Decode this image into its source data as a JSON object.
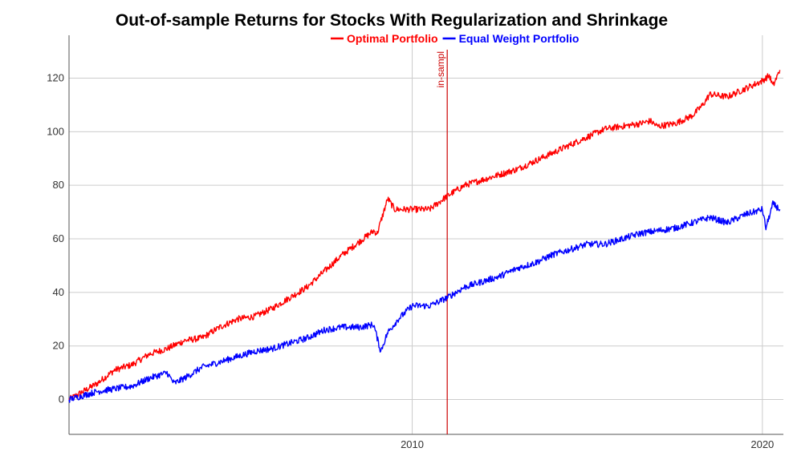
{
  "chart_data": {
    "type": "line",
    "title": "Out-of-sample Returns for Stocks With Regularization and Shrinkage",
    "xlabel": "",
    "ylabel": "",
    "xlim": [
      2000.2,
      2020.6
    ],
    "ylim": [
      -13,
      136
    ],
    "x_ticks": [
      2010,
      2020
    ],
    "x_tick_labels": [
      "2010",
      "2020"
    ],
    "y_ticks": [
      0,
      20,
      40,
      60,
      80,
      100,
      120
    ],
    "y_tick_labels": [
      "0",
      "20",
      "40",
      "60",
      "80",
      "100",
      "120"
    ],
    "grid": true,
    "legend_position": "top",
    "annotations": [
      {
        "x": 2011.0,
        "label": "in-sampl",
        "color": "#cc0000"
      }
    ],
    "series": [
      {
        "name": "Optimal Portfolio",
        "color": "#ff0000",
        "x": [
          2000.2,
          2001.0,
          2001.5,
          2002.0,
          2002.5,
          2003.0,
          2003.5,
          2004.0,
          2004.5,
          2005.0,
          2005.5,
          2006.0,
          2006.5,
          2007.0,
          2007.5,
          2008.0,
          2008.5,
          2008.9,
          2009.0,
          2009.3,
          2009.5,
          2010.0,
          2010.5,
          2011.0,
          2011.5,
          2012.0,
          2012.5,
          2013.0,
          2013.5,
          2014.0,
          2014.5,
          2015.0,
          2015.5,
          2016.0,
          2016.5,
          2016.8,
          2017.0,
          2017.5,
          2018.0,
          2018.3,
          2018.5,
          2019.0,
          2019.5,
          2020.0,
          2020.2,
          2020.3,
          2020.5
        ],
        "y": [
          0,
          6,
          11,
          13,
          17,
          19,
          22,
          23,
          27,
          30,
          31,
          34,
          38,
          42,
          48,
          54,
          59,
          63,
          62,
          75,
          71,
          71,
          71,
          76,
          80,
          82,
          84,
          86,
          89,
          92,
          95,
          98,
          101,
          102,
          103,
          104,
          102,
          103,
          106,
          110,
          114,
          113,
          116,
          119,
          121,
          117,
          123
        ]
      },
      {
        "name": "Equal Weight Portfolio",
        "color": "#0000ff",
        "x": [
          2000.2,
          2001.0,
          2001.5,
          2002.0,
          2002.5,
          2003.0,
          2003.2,
          2003.5,
          2004.0,
          2004.5,
          2005.0,
          2005.5,
          2006.0,
          2006.5,
          2007.0,
          2007.5,
          2008.0,
          2008.5,
          2008.9,
          2009.1,
          2009.3,
          2009.6,
          2010.0,
          2010.5,
          2011.0,
          2011.5,
          2012.0,
          2012.5,
          2013.0,
          2013.5,
          2014.0,
          2014.5,
          2015.0,
          2015.5,
          2016.0,
          2016.5,
          2017.0,
          2017.5,
          2018.0,
          2018.5,
          2019.0,
          2019.5,
          2020.0,
          2020.1,
          2020.3,
          2020.5
        ],
        "y": [
          0,
          3,
          4,
          5,
          8,
          10,
          6,
          8,
          12,
          14,
          16,
          18,
          19,
          21,
          23,
          26,
          27,
          27,
          28,
          18,
          25,
          30,
          35,
          35,
          38,
          42,
          44,
          46,
          49,
          51,
          54,
          56,
          58,
          58,
          60,
          62,
          63,
          64,
          66,
          68,
          66,
          69,
          71,
          64,
          73,
          71
        ]
      }
    ]
  }
}
